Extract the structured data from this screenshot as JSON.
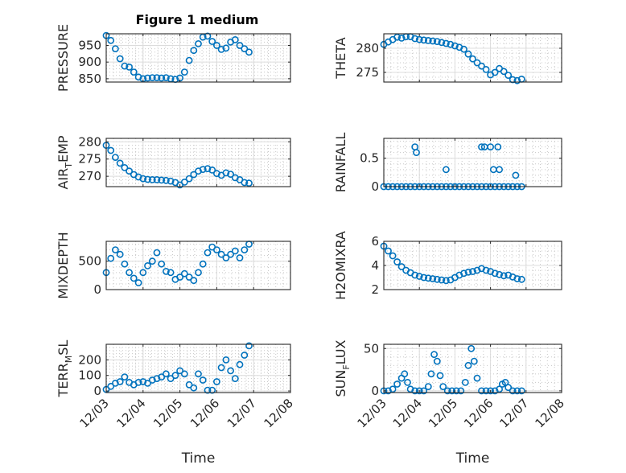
{
  "figure": {
    "title": "Figure 1 medium"
  },
  "chart_data": [
    {
      "id": "pressure",
      "type": "scatter",
      "ylabel": "PRESSURE",
      "xlim": [
        "12/03",
        "12/08"
      ],
      "ylim": [
        840,
        985
      ],
      "yticks": [
        850,
        900,
        950
      ],
      "x": [
        "12/03 00:00",
        "12/03 03:00",
        "12/03 06:00",
        "12/03 09:00",
        "12/03 12:00",
        "12/03 15:00",
        "12/03 18:00",
        "12/03 21:00",
        "12/04 00:00",
        "12/04 03:00",
        "12/04 06:00",
        "12/04 09:00",
        "12/04 12:00",
        "12/04 15:00",
        "12/04 18:00",
        "12/04 21:00",
        "12/05 00:00",
        "12/05 03:00",
        "12/05 06:00",
        "12/05 09:00",
        "12/05 12:00",
        "12/05 15:00",
        "12/05 18:00",
        "12/05 21:00",
        "12/06 00:00",
        "12/06 03:00",
        "12/06 06:00",
        "12/06 09:00",
        "12/06 12:00",
        "12/06 15:00",
        "12/06 18:00",
        "12/06 21:00"
      ],
      "y": [
        980,
        965,
        940,
        910,
        888,
        885,
        870,
        855,
        850,
        852,
        853,
        853,
        852,
        853,
        850,
        848,
        852,
        870,
        905,
        935,
        955,
        975,
        978,
        962,
        950,
        938,
        942,
        960,
        967,
        950,
        940,
        930
      ]
    },
    {
      "id": "theta",
      "type": "scatter",
      "ylabel": "THETA",
      "xlim": [
        "12/03",
        "12/08"
      ],
      "ylim": [
        273,
        283
      ],
      "yticks": [
        275,
        280
      ],
      "x": [
        "12/03 00:00",
        "12/03 03:00",
        "12/03 06:00",
        "12/03 09:00",
        "12/03 12:00",
        "12/03 15:00",
        "12/03 18:00",
        "12/03 21:00",
        "12/04 00:00",
        "12/04 03:00",
        "12/04 06:00",
        "12/04 09:00",
        "12/04 12:00",
        "12/04 15:00",
        "12/04 18:00",
        "12/04 21:00",
        "12/05 00:00",
        "12/05 03:00",
        "12/05 06:00",
        "12/05 09:00",
        "12/05 12:00",
        "12/05 15:00",
        "12/05 18:00",
        "12/05 21:00",
        "12/06 00:00",
        "12/06 03:00",
        "12/06 06:00",
        "12/06 09:00",
        "12/06 12:00",
        "12/06 15:00",
        "12/06 18:00",
        "12/06 21:00"
      ],
      "y": [
        280.8,
        281.3,
        281.8,
        282.3,
        282.1,
        282.4,
        282.4,
        282.0,
        281.8,
        281.7,
        281.6,
        281.5,
        281.4,
        281.2,
        281.0,
        280.8,
        280.5,
        280.2,
        279.8,
        278.8,
        277.8,
        277.0,
        276.3,
        275.6,
        274.5,
        275.0,
        275.8,
        275.2,
        274.4,
        273.5,
        273.3,
        273.6
      ]
    },
    {
      "id": "air_temp",
      "type": "scatter",
      "ylabel_main": "AIR",
      "ylabel_sub": "T",
      "ylabel_rest": "EMP",
      "xlim": [
        "12/03",
        "12/08"
      ],
      "ylim": [
        267,
        281
      ],
      "yticks": [
        270,
        275,
        280
      ],
      "x": [
        "12/03 00:00",
        "12/03 03:00",
        "12/03 06:00",
        "12/03 09:00",
        "12/03 12:00",
        "12/03 15:00",
        "12/03 18:00",
        "12/03 21:00",
        "12/04 00:00",
        "12/04 03:00",
        "12/04 06:00",
        "12/04 09:00",
        "12/04 12:00",
        "12/04 15:00",
        "12/04 18:00",
        "12/04 21:00",
        "12/05 00:00",
        "12/05 03:00",
        "12/05 06:00",
        "12/05 09:00",
        "12/05 12:00",
        "12/05 15:00",
        "12/05 18:00",
        "12/05 21:00",
        "12/06 00:00",
        "12/06 03:00",
        "12/06 06:00",
        "12/06 09:00",
        "12/06 12:00",
        "12/06 15:00",
        "12/06 18:00",
        "12/06 21:00"
      ],
      "y": [
        279,
        277.5,
        275.5,
        273.8,
        272.5,
        271.5,
        270.5,
        269.8,
        269.3,
        269.1,
        269.0,
        269.0,
        268.9,
        268.8,
        268.6,
        268.2,
        267.5,
        268.3,
        269.3,
        270.5,
        271.5,
        272.0,
        272.2,
        271.8,
        270.8,
        270.3,
        271.0,
        270.6,
        269.6,
        269.0,
        268.2,
        268.0
      ]
    },
    {
      "id": "rainfall",
      "type": "scatter",
      "ylabel": "RAINFALL",
      "xlim": [
        "12/03",
        "12/08"
      ],
      "ylim": [
        0,
        0.85
      ],
      "yticks": [
        0,
        0.5
      ],
      "x": [
        "12/03 00:00",
        "12/03 03:00",
        "12/03 06:00",
        "12/03 09:00",
        "12/03 12:00",
        "12/03 15:00",
        "12/03 18:00",
        "12/03 21:00",
        "12/04 00:00",
        "12/04 03:00",
        "12/04 06:00",
        "12/04 09:00",
        "12/04 12:00",
        "12/04 15:00",
        "12/04 18:00",
        "12/04 21:00",
        "12/05 00:00",
        "12/05 03:00",
        "12/05 06:00",
        "12/05 09:00",
        "12/05 12:00",
        "12/05 15:00",
        "12/05 18:00",
        "12/05 21:00",
        "12/06 00:00",
        "12/06 03:00",
        "12/06 06:00",
        "12/06 09:00",
        "12/06 12:00",
        "12/06 15:00",
        "12/06 18:00",
        "12/06 21:00",
        "12/03 21:00",
        "12/03 22:00",
        "12/04 18:00",
        "12/05 18:00",
        "12/05 20:00",
        "12/06 00:00",
        "12/06 02:00",
        "12/06 05:00",
        "12/06 06:00",
        "12/06 17:00"
      ],
      "y": [
        0,
        0,
        0,
        0,
        0,
        0,
        0,
        0,
        0,
        0,
        0,
        0,
        0,
        0,
        0,
        0,
        0,
        0,
        0,
        0,
        0,
        0,
        0,
        0,
        0,
        0,
        0,
        0,
        0,
        0,
        0,
        0,
        0.7,
        0.6,
        0.3,
        0.7,
        0.7,
        0.7,
        0.3,
        0.7,
        0.3,
        0.2
      ]
    },
    {
      "id": "mixdepth",
      "type": "scatter",
      "ylabel": "MIXDEPTH",
      "xlim": [
        "12/03",
        "12/08"
      ],
      "ylim": [
        0,
        850
      ],
      "yticks": [
        0,
        500
      ],
      "x": [
        "12/03 00:00",
        "12/03 03:00",
        "12/03 06:00",
        "12/03 09:00",
        "12/03 12:00",
        "12/03 15:00",
        "12/03 18:00",
        "12/03 21:00",
        "12/04 00:00",
        "12/04 03:00",
        "12/04 06:00",
        "12/04 09:00",
        "12/04 12:00",
        "12/04 15:00",
        "12/04 18:00",
        "12/04 21:00",
        "12/05 00:00",
        "12/05 03:00",
        "12/05 06:00",
        "12/05 09:00",
        "12/05 12:00",
        "12/05 15:00",
        "12/05 18:00",
        "12/05 21:00",
        "12/06 00:00",
        "12/06 03:00",
        "12/06 06:00",
        "12/06 09:00",
        "12/06 12:00",
        "12/06 15:00",
        "12/06 18:00",
        "12/06 21:00"
      ],
      "y": [
        300,
        550,
        700,
        620,
        450,
        300,
        200,
        120,
        300,
        420,
        500,
        650,
        450,
        320,
        300,
        180,
        220,
        280,
        220,
        160,
        300,
        450,
        650,
        750,
        700,
        620,
        560,
        620,
        680,
        560,
        700,
        800
      ]
    },
    {
      "id": "h2omixra",
      "type": "scatter",
      "ylabel": "H2OMIXRA",
      "xlim": [
        "12/03",
        "12/08"
      ],
      "ylim": [
        2,
        6
      ],
      "yticks": [
        2,
        4,
        6
      ],
      "x": [
        "12/03 00:00",
        "12/03 03:00",
        "12/03 06:00",
        "12/03 09:00",
        "12/03 12:00",
        "12/03 15:00",
        "12/03 18:00",
        "12/03 21:00",
        "12/04 00:00",
        "12/04 03:00",
        "12/04 06:00",
        "12/04 09:00",
        "12/04 12:00",
        "12/04 15:00",
        "12/04 18:00",
        "12/04 21:00",
        "12/05 00:00",
        "12/05 03:00",
        "12/05 06:00",
        "12/05 09:00",
        "12/05 12:00",
        "12/05 15:00",
        "12/05 18:00",
        "12/05 21:00",
        "12/06 00:00",
        "12/06 03:00",
        "12/06 06:00",
        "12/06 09:00",
        "12/06 12:00",
        "12/06 15:00",
        "12/06 18:00",
        "12/06 21:00"
      ],
      "y": [
        5.6,
        5.2,
        4.8,
        4.3,
        3.9,
        3.6,
        3.4,
        3.2,
        3.1,
        3.0,
        2.95,
        2.9,
        2.85,
        2.8,
        2.75,
        2.8,
        3.0,
        3.2,
        3.35,
        3.45,
        3.5,
        3.6,
        3.75,
        3.6,
        3.5,
        3.35,
        3.25,
        3.15,
        3.2,
        3.05,
        2.9,
        2.85
      ]
    },
    {
      "id": "terr_msl",
      "type": "scatter",
      "ylabel_main": "TERR",
      "ylabel_sub": "M",
      "ylabel_rest": "SL",
      "xlim": [
        "12/03",
        "12/08"
      ],
      "ylim": [
        -10,
        300
      ],
      "yticks": [
        0,
        100,
        200
      ],
      "x": [
        "12/03 00:00",
        "12/03 03:00",
        "12/03 06:00",
        "12/03 09:00",
        "12/03 12:00",
        "12/03 15:00",
        "12/03 18:00",
        "12/03 21:00",
        "12/04 00:00",
        "12/04 03:00",
        "12/04 06:00",
        "12/04 09:00",
        "12/04 12:00",
        "12/04 15:00",
        "12/04 18:00",
        "12/04 21:00",
        "12/05 00:00",
        "12/05 03:00",
        "12/05 06:00",
        "12/05 09:00",
        "12/05 12:00",
        "12/05 15:00",
        "12/05 18:00",
        "12/05 21:00",
        "12/06 00:00",
        "12/06 03:00",
        "12/06 06:00",
        "12/06 09:00",
        "12/06 12:00",
        "12/06 15:00",
        "12/06 18:00",
        "12/06 21:00"
      ],
      "y": [
        10,
        30,
        50,
        60,
        90,
        55,
        40,
        55,
        60,
        50,
        70,
        80,
        90,
        110,
        80,
        100,
        130,
        110,
        40,
        20,
        110,
        70,
        5,
        5,
        60,
        150,
        200,
        130,
        80,
        170,
        230,
        290
      ]
    },
    {
      "id": "sun_flux",
      "type": "scatter",
      "ylabel_main": "SUN",
      "ylabel_sub": "F",
      "ylabel_rest": "LUX",
      "xlim": [
        "12/03",
        "12/08"
      ],
      "ylim": [
        -2,
        55
      ],
      "yticks": [
        0,
        50
      ],
      "x": [
        "12/03 00:00",
        "12/03 03:00",
        "12/03 06:00",
        "12/03 09:00",
        "12/03 12:00",
        "12/03 14:00",
        "12/03 16:00",
        "12/03 18:00",
        "12/03 21:00",
        "12/04 00:00",
        "12/04 03:00",
        "12/04 06:00",
        "12/04 08:00",
        "12/04 10:00",
        "12/04 12:00",
        "12/04 14:00",
        "12/04 16:00",
        "12/04 19:00",
        "12/04 22:00",
        "12/05 01:00",
        "12/05 04:00",
        "12/05 07:00",
        "12/05 09:00",
        "12/05 11:00",
        "12/05 13:00",
        "12/05 15:00",
        "12/05 18:00",
        "12/05 21:00",
        "12/06 00:00",
        "12/06 03:00",
        "12/06 06:00",
        "12/06 08:00",
        "12/06 10:00",
        "12/06 12:00",
        "12/06 15:00",
        "12/06 18:00",
        "12/06 21:00"
      ],
      "y": [
        0,
        0,
        2,
        8,
        15,
        20,
        10,
        2,
        0,
        0,
        0,
        5,
        20,
        43,
        35,
        18,
        5,
        0,
        0,
        0,
        0,
        10,
        30,
        50,
        35,
        15,
        0,
        0,
        0,
        0,
        2,
        8,
        10,
        4,
        0,
        0,
        0
      ]
    }
  ],
  "x_axis": {
    "ticks": [
      "12/03",
      "12/04",
      "12/05",
      "12/06",
      "12/07",
      "12/08"
    ],
    "label": "Time"
  }
}
